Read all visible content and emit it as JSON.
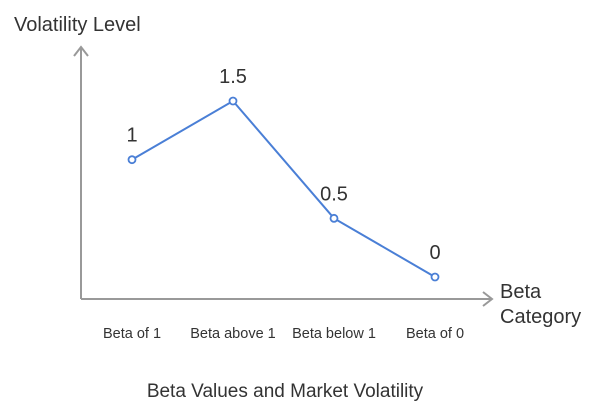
{
  "chart_data": {
    "type": "line",
    "title": "Beta Values and Market Volatility",
    "xlabel": [
      "Beta",
      "Category"
    ],
    "ylabel": "Volatility Level",
    "categories": [
      "Beta of 1",
      "Beta above 1",
      "Beta below 1",
      "Beta of 0"
    ],
    "values": [
      1,
      1.5,
      0.5,
      0
    ],
    "data_labels": [
      "1",
      "1.5",
      "0.5",
      "0"
    ],
    "ylim": [
      0,
      1.5
    ],
    "grid": false,
    "colors": {
      "line": "#4a7fd6",
      "axis": "#999999",
      "text": "#333333"
    }
  }
}
